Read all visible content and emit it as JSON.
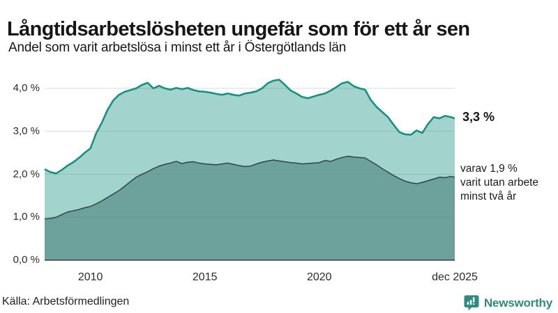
{
  "header": {
    "title": "Långtidsarbetslösheten ungefär som för ett år sen",
    "subtitle": "Andel som varit arbetslösa i minst ett år i Östergötlands län"
  },
  "chart_data": {
    "type": "area",
    "title": "Långtidsarbetslösheten ungefär som för ett år sen",
    "subtitle": "Andel som varit arbetslösa i minst ett år i Östergötlands län",
    "region": "Östergötlands län",
    "x_unit": "år (decimal, kvartalsvis)",
    "ylim": [
      0,
      4.4
    ],
    "grid": true,
    "y_ticks": [
      {
        "label": "0,0 %",
        "value": 0
      },
      {
        "label": "1,0 %",
        "value": 1
      },
      {
        "label": "2,0 %",
        "value": 2
      },
      {
        "label": "3,0 %",
        "value": 3
      },
      {
        "label": "4,0 %",
        "value": 4
      }
    ],
    "x_ticks": [
      {
        "label": "2010",
        "value": 2010
      },
      {
        "label": "2015",
        "value": 2015
      },
      {
        "label": "2020",
        "value": 2020
      },
      {
        "label": "dec 2025",
        "value": 2025.92
      }
    ],
    "x": [
      2008.0,
      2008.25,
      2008.5,
      2008.75,
      2009.0,
      2009.25,
      2009.5,
      2009.75,
      2010.0,
      2010.25,
      2010.5,
      2010.75,
      2011.0,
      2011.25,
      2011.5,
      2011.75,
      2012.0,
      2012.25,
      2012.5,
      2012.75,
      2013.0,
      2013.25,
      2013.5,
      2013.75,
      2014.0,
      2014.25,
      2014.5,
      2014.75,
      2015.0,
      2015.25,
      2015.5,
      2015.75,
      2016.0,
      2016.25,
      2016.5,
      2016.75,
      2017.0,
      2017.25,
      2017.5,
      2017.75,
      2018.0,
      2018.25,
      2018.5,
      2018.75,
      2019.0,
      2019.25,
      2019.5,
      2019.75,
      2020.0,
      2020.25,
      2020.5,
      2020.75,
      2021.0,
      2021.25,
      2021.5,
      2021.75,
      2022.0,
      2022.25,
      2022.5,
      2022.75,
      2023.0,
      2023.25,
      2023.5,
      2023.75,
      2024.0,
      2024.25,
      2024.5,
      2024.75,
      2025.0,
      2025.25,
      2025.5,
      2025.75,
      2025.92
    ],
    "series": [
      {
        "name": "Arbetslösa minst ett år",
        "line_color": "#17917f",
        "fill_color": "#a2d4cd",
        "end_value": 3.3,
        "values": [
          2.12,
          2.05,
          2.02,
          2.1,
          2.2,
          2.28,
          2.38,
          2.5,
          2.6,
          2.95,
          3.2,
          3.5,
          3.72,
          3.85,
          3.92,
          3.96,
          4.0,
          4.08,
          4.13,
          4.0,
          4.06,
          4.0,
          3.97,
          4.01,
          3.98,
          4.01,
          3.96,
          3.93,
          3.92,
          3.9,
          3.87,
          3.85,
          3.88,
          3.85,
          3.83,
          3.88,
          3.9,
          3.93,
          4.0,
          4.12,
          4.18,
          4.2,
          4.08,
          3.95,
          3.88,
          3.8,
          3.77,
          3.81,
          3.85,
          3.88,
          3.95,
          4.03,
          4.12,
          4.15,
          4.05,
          4.0,
          3.97,
          3.73,
          3.57,
          3.45,
          3.33,
          3.15,
          2.98,
          2.93,
          2.92,
          3.02,
          2.96,
          3.17,
          3.33,
          3.3,
          3.36,
          3.33,
          3.3
        ]
      },
      {
        "name": "Utan arbete minst två år",
        "line_color": "#2f4e48",
        "fill_color": "#6da19b",
        "end_value": 1.9,
        "values": [
          0.96,
          0.97,
          1.0,
          1.06,
          1.12,
          1.15,
          1.18,
          1.22,
          1.25,
          1.31,
          1.38,
          1.46,
          1.54,
          1.62,
          1.72,
          1.83,
          1.93,
          2.0,
          2.06,
          2.13,
          2.19,
          2.23,
          2.26,
          2.3,
          2.25,
          2.28,
          2.29,
          2.26,
          2.24,
          2.23,
          2.22,
          2.24,
          2.26,
          2.23,
          2.2,
          2.18,
          2.19,
          2.24,
          2.28,
          2.31,
          2.33,
          2.31,
          2.29,
          2.27,
          2.26,
          2.24,
          2.25,
          2.26,
          2.27,
          2.32,
          2.3,
          2.35,
          2.39,
          2.42,
          2.4,
          2.39,
          2.38,
          2.3,
          2.22,
          2.13,
          2.05,
          1.97,
          1.9,
          1.84,
          1.8,
          1.78,
          1.81,
          1.85,
          1.89,
          1.93,
          1.92,
          1.95,
          1.93
        ]
      }
    ],
    "annotations": {
      "end_value_label": "3,3 %",
      "sub_label_lines": [
        "varav 1,9 %",
        "varit utan arbete",
        "minst två år"
      ]
    },
    "legend_position": "right-annotations"
  },
  "colors": {
    "series1_line": "#17917f",
    "series1_fill": "#a2d4cd",
    "series2_line": "#2f4e48",
    "series2_fill": "#6da19b",
    "gridline": "#d9dde3",
    "axis": "#3f3f3f",
    "brand_teal": "#2e8b80",
    "text": "#1a1a1a"
  },
  "footer": {
    "source": "Källa: Arbetsförmedlingen",
    "brand": "Newsworthy"
  }
}
